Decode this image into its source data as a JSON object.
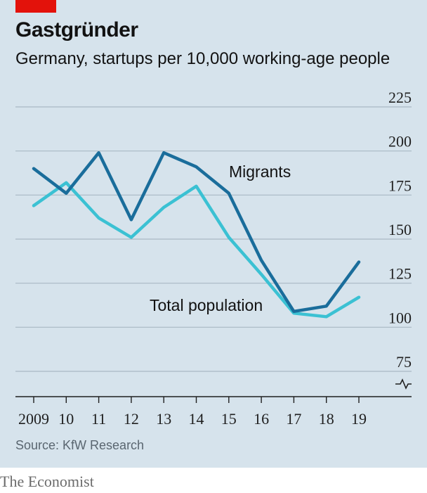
{
  "header": {
    "title": "Gastgründer",
    "subtitle": "Germany, startups per 10,000 working-age people"
  },
  "footer": {
    "source": "Source: KfW Research",
    "brand": "The Economist"
  },
  "colors": {
    "background": "#d6e3ec",
    "accent_red": "#e3120b",
    "migrants": "#1a6d9b",
    "total_population": "#3bc1d3",
    "grid": "#a9b8c4"
  },
  "chart_data": {
    "type": "line",
    "title": "Gastgründer",
    "subtitle": "Germany, startups per 10,000 working-age people",
    "x": [
      "2009",
      "10",
      "11",
      "12",
      "13",
      "14",
      "15",
      "16",
      "17",
      "18",
      "19"
    ],
    "y_ticks": [
      225,
      200,
      175,
      150,
      125,
      100,
      75
    ],
    "ylim": [
      75,
      225
    ],
    "y_axis_break": true,
    "y_axis_position": "right",
    "grid": true,
    "series": [
      {
        "name": "Migrants",
        "color": "#1a6d9b",
        "values": [
          190,
          176,
          199,
          161,
          199,
          191,
          176,
          138,
          109,
          112,
          137
        ]
      },
      {
        "name": "Total population",
        "color": "#3bc1d3",
        "values": [
          169,
          182,
          162,
          151,
          168,
          180,
          151,
          130,
          108,
          106,
          117
        ]
      }
    ]
  }
}
